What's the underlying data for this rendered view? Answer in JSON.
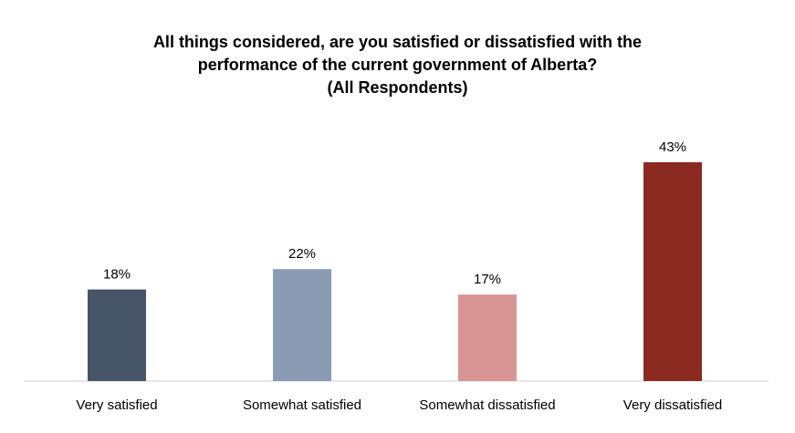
{
  "chart_data": {
    "type": "bar",
    "title_lines": [
      "All things considered, are you satisfied or dissatisfied with the",
      "performance of the current government of Alberta?",
      "(All Respondents)"
    ],
    "categories": [
      "Very satisfied",
      "Somewhat satisfied",
      "Somewhat dissatisfied",
      "Very dissatisfied"
    ],
    "values": [
      18,
      22,
      17,
      43
    ],
    "value_labels": [
      "18%",
      "22%",
      "17%",
      "43%"
    ],
    "colors": [
      "#475569",
      "#8a9bb3",
      "#d99595",
      "#8b2a20"
    ],
    "ylim": [
      0,
      45
    ],
    "grid": false,
    "legend": "none"
  }
}
